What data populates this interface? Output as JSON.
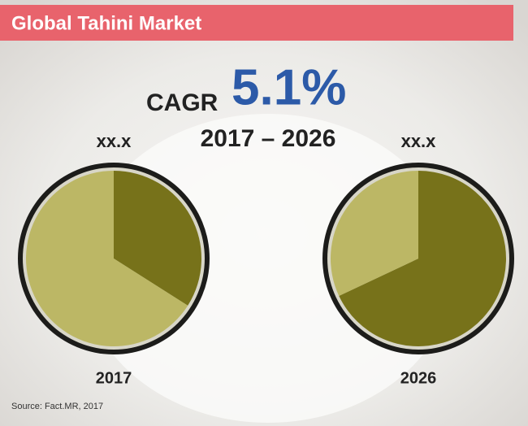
{
  "title": "Global Tahini Market",
  "cagr_label": "CAGR",
  "cagr_value": "5.1%",
  "period": "2017 – 2026",
  "source": "Source: Fact.MR, 2017",
  "chart_data": [
    {
      "type": "pie",
      "label": "xx.x",
      "year": "2017",
      "values": [
        34,
        66
      ],
      "colors": [
        "#77721a",
        "#bcb765"
      ]
    },
    {
      "type": "pie",
      "label": "xx.x",
      "year": "2026",
      "values": [
        68,
        32
      ],
      "colors": [
        "#77721a",
        "#bcb765"
      ]
    }
  ]
}
